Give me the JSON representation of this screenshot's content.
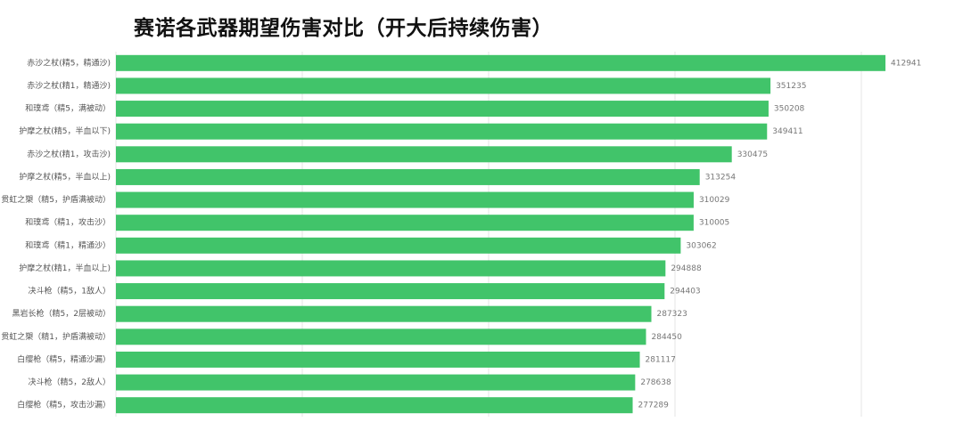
{
  "chart_data": {
    "type": "bar",
    "orientation": "horizontal",
    "title": "赛诺各武器期望伤害对比（开大后持续伤害）",
    "categories": [
      "赤沙之杖(精5，精通沙)",
      "赤沙之杖(精1，精通沙)",
      "和璞鸢（精5，满被动）",
      "护摩之杖(精5，半血以下)",
      "赤沙之杖(精1，攻击沙)",
      "护摩之杖(精5，半血以上)",
      "贯虹之槊（精5，护盾满被动）",
      "和璞鸢（精1，攻击沙）",
      "和璞鸢（精1，精通沙）",
      "护摩之杖(精1，半血以上)",
      "决斗枪（精5，1敌人）",
      "黑岩长枪（精5，2层被动）",
      "贯虹之槊（精1，护盾满被动）",
      "白缨枪（精5，精通沙漏）",
      "决斗枪（精5，2敌人）",
      "白缨枪（精5，攻击沙漏）"
    ],
    "values": [
      412941,
      351235,
      350208,
      349411,
      330475,
      313254,
      310029,
      310005,
      303062,
      294888,
      294403,
      287323,
      284450,
      281117,
      278638,
      277289
    ],
    "xlim": [
      0,
      400000
    ],
    "grid": true,
    "bar_color": "#41c46a",
    "grid_color": "#e6e6e6",
    "legend": "none"
  }
}
